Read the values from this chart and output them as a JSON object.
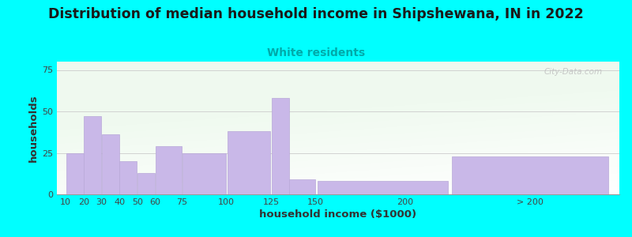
{
  "title": "Distribution of median household income in Shipshewana, IN in 2022",
  "subtitle": "White residents",
  "xlabel": "household income ($1000)",
  "ylabel": "households",
  "background_outer": "#00FFFF",
  "bar_color": "#c9b8e8",
  "bar_edgecolor": "#b8a8d8",
  "title_fontsize": 12.5,
  "subtitle_fontsize": 10,
  "subtitle_color": "#00aaaa",
  "xlabel_fontsize": 9.5,
  "ylabel_fontsize": 9.5,
  "bar_lefts": [
    10,
    20,
    30,
    40,
    50,
    60,
    75,
    100,
    125,
    135,
    150,
    225
  ],
  "bar_widths": [
    10,
    10,
    10,
    10,
    10,
    15,
    25,
    25,
    10,
    15,
    75,
    90
  ],
  "bar_heights": [
    25,
    47,
    36,
    20,
    13,
    29,
    25,
    38,
    58,
    9,
    8,
    23
  ],
  "tick_labels": [
    "10",
    "20",
    "30",
    "40",
    "50",
    "60",
    "75",
    "100",
    "125",
    "150",
    "200",
    "> 200"
  ],
  "tick_positions": [
    10,
    20,
    30,
    40,
    50,
    60,
    75,
    100,
    125,
    150,
    200,
    270
  ],
  "xlim": [
    5,
    320
  ],
  "ylim": [
    0,
    80
  ],
  "yticks": [
    0,
    25,
    50,
    75
  ],
  "watermark": "City-Data.com"
}
